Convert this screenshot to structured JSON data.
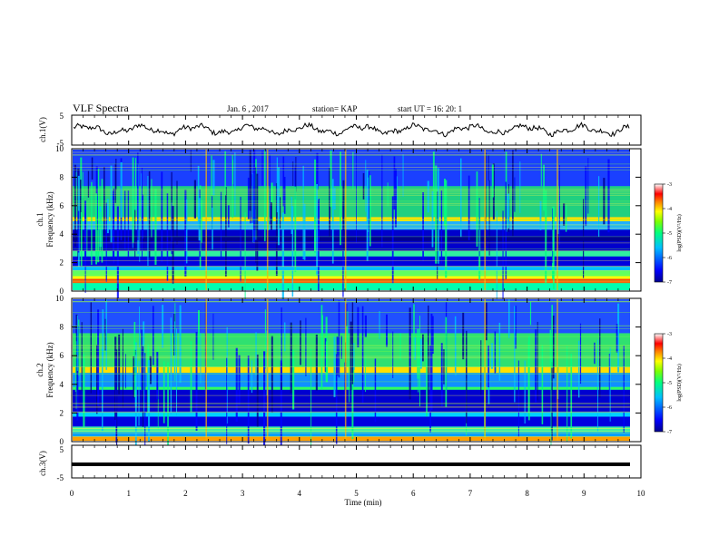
{
  "header": {
    "title": "VLF Spectra",
    "date": "Jan. 6 , 2017",
    "station": "station= KAP",
    "start": "start UT =  16: 20: 1"
  },
  "chart_data": [
    {
      "type": "line",
      "name": "ch1-waveform",
      "ylabel": "ch.1(V)",
      "ylim": [
        -5,
        5
      ],
      "yticks": [
        "5",
        "-5"
      ],
      "xlim": [
        0,
        10
      ]
    },
    {
      "type": "heatmap",
      "name": "ch1-spectrogram",
      "ylabel": "ch.1 Frequency (kHz)",
      "ylim": [
        0,
        10
      ],
      "yticks": [
        "0",
        "2",
        "4",
        "6",
        "8",
        "10"
      ],
      "xlim": [
        0,
        10
      ],
      "colorbar": {
        "label": "log(PSD)(V²/Hz)",
        "range": [
          -7,
          -3
        ],
        "ticks": [
          "-3",
          "-4",
          "-5",
          "-6",
          "-7"
        ]
      }
    },
    {
      "type": "heatmap",
      "name": "ch2-spectrogram",
      "ylabel": "ch.2 Frequency (kHz)",
      "ylim": [
        0,
        10
      ],
      "yticks": [
        "0",
        "2",
        "4",
        "6",
        "8",
        "10"
      ],
      "xlim": [
        0,
        10
      ],
      "colorbar": {
        "label": "log(PSD)(V²/Hz)",
        "range": [
          -7,
          -3
        ],
        "ticks": [
          "-3",
          "-4",
          "-5",
          "-6",
          "-7"
        ]
      }
    },
    {
      "type": "line",
      "name": "ch3-waveform",
      "ylabel": "ch.3(V)",
      "ylim": [
        -5,
        5
      ],
      "yticks": [
        "5",
        "-5"
      ],
      "xlim": [
        0,
        10
      ],
      "constant_value": 0
    }
  ],
  "xaxis": {
    "label": "Time (min)",
    "ticks": [
      "0",
      "1",
      "2",
      "3",
      "4",
      "5",
      "6",
      "7",
      "8",
      "9",
      "10"
    ]
  },
  "colors": {
    "spectrum": [
      "#00008f",
      "#0000ff",
      "#00bfff",
      "#00ff80",
      "#7fff00",
      "#ffff00",
      "#ff8000",
      "#ff0000",
      "#ffffff"
    ]
  }
}
